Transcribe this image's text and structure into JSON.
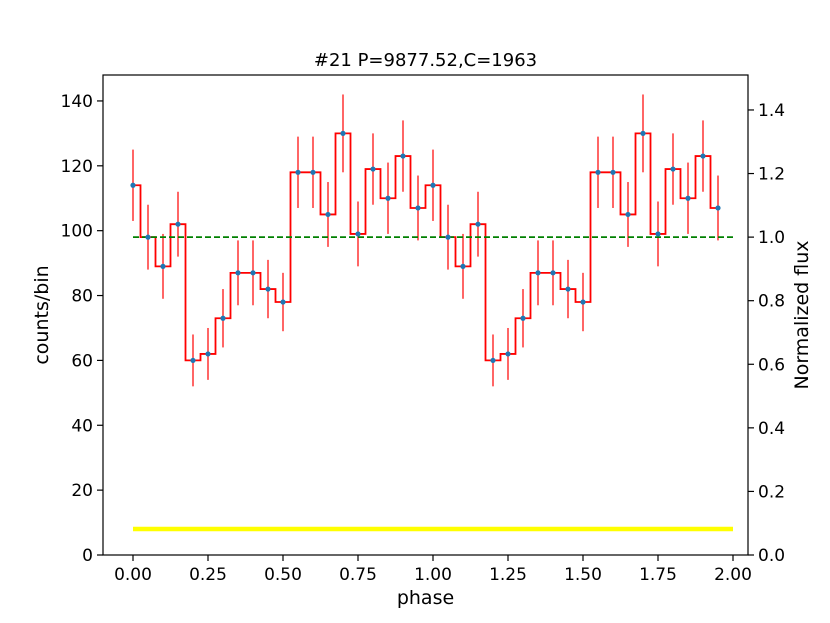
{
  "chart_data": {
    "type": "line",
    "title": "#21 P=9877.52,C=1963",
    "xlabel": "phase",
    "ylabel": "counts/bin",
    "y2label": "Normalized flux",
    "xlim": [
      -0.1,
      2.05
    ],
    "ylim": [
      0,
      148
    ],
    "y2lim": [
      0,
      1.51
    ],
    "x_ticks": [
      "0.00",
      "0.25",
      "0.50",
      "0.75",
      "1.00",
      "1.25",
      "1.50",
      "1.75",
      "2.00"
    ],
    "y_ticks": [
      "0",
      "20",
      "40",
      "60",
      "80",
      "100",
      "120",
      "140"
    ],
    "y2_ticks": [
      "0.0",
      "0.2",
      "0.4",
      "0.6",
      "0.8",
      "1.0",
      "1.2",
      "1.4"
    ],
    "grid": false,
    "bin_width": 0.05,
    "bin_centers": [
      0.0,
      0.05,
      0.1,
      0.15,
      0.2,
      0.25,
      0.3,
      0.35,
      0.4,
      0.45,
      0.5,
      0.55,
      0.6,
      0.65,
      0.7,
      0.75,
      0.8,
      0.85,
      0.9,
      0.95,
      1.0,
      1.05,
      1.1,
      1.15,
      1.2,
      1.25,
      1.3,
      1.35,
      1.4,
      1.45,
      1.5,
      1.55,
      1.6,
      1.65,
      1.7,
      1.75,
      1.8,
      1.85,
      1.9,
      1.95
    ],
    "series": [
      {
        "kind": "step",
        "color": "#ff0000",
        "values": [
          114,
          98,
          89,
          102,
          60,
          62,
          73,
          87,
          87,
          82,
          78,
          118,
          118,
          105,
          130,
          99,
          119,
          110,
          123,
          107,
          114,
          98,
          89,
          102,
          60,
          62,
          73,
          87,
          87,
          82,
          78,
          118,
          118,
          105,
          130,
          99,
          119,
          110,
          123,
          107
        ],
        "errors": [
          11,
          10,
          10,
          10,
          8,
          8,
          9,
          10,
          10,
          9,
          9,
          11,
          11,
          10,
          12,
          10,
          11,
          11,
          11,
          10,
          11,
          10,
          10,
          10,
          8,
          8,
          9,
          10,
          10,
          9,
          9,
          11,
          11,
          10,
          12,
          10,
          11,
          11,
          11,
          10
        ],
        "marker_color": "#1f77b4",
        "error_color": "#ff0000"
      },
      {
        "kind": "hline",
        "color": "#008000",
        "dashed": true,
        "value": 98,
        "x_range": [
          0.0,
          2.0
        ]
      },
      {
        "kind": "hline",
        "color": "#ffff00",
        "dashed": false,
        "value": 8,
        "x_range": [
          0.0,
          2.0
        ]
      }
    ]
  }
}
